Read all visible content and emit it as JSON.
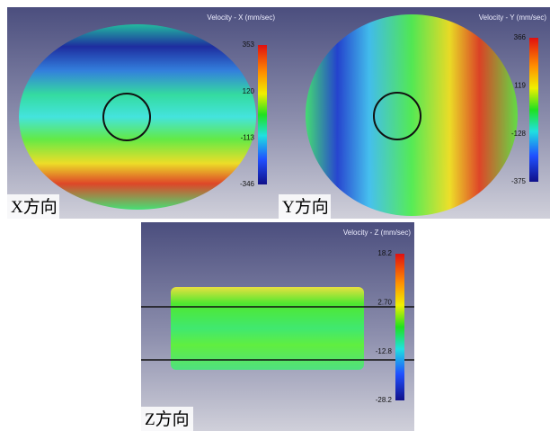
{
  "panels": [
    {
      "title": "Velocity - X (mm/sec)",
      "colorbar_ticks": [
        "353",
        "120",
        "-113",
        "-346"
      ],
      "label": "X方向"
    },
    {
      "title": "Velocity - Y (mm/sec)",
      "colorbar_ticks": [
        "366",
        "119",
        "-128",
        "-375"
      ],
      "label": "Y方向"
    },
    {
      "title": "Velocity - Z (mm/sec)",
      "colorbar_ticks": [
        "18.2",
        "2.70",
        "-12.8",
        "-28.2"
      ],
      "label": "Z方向"
    }
  ]
}
